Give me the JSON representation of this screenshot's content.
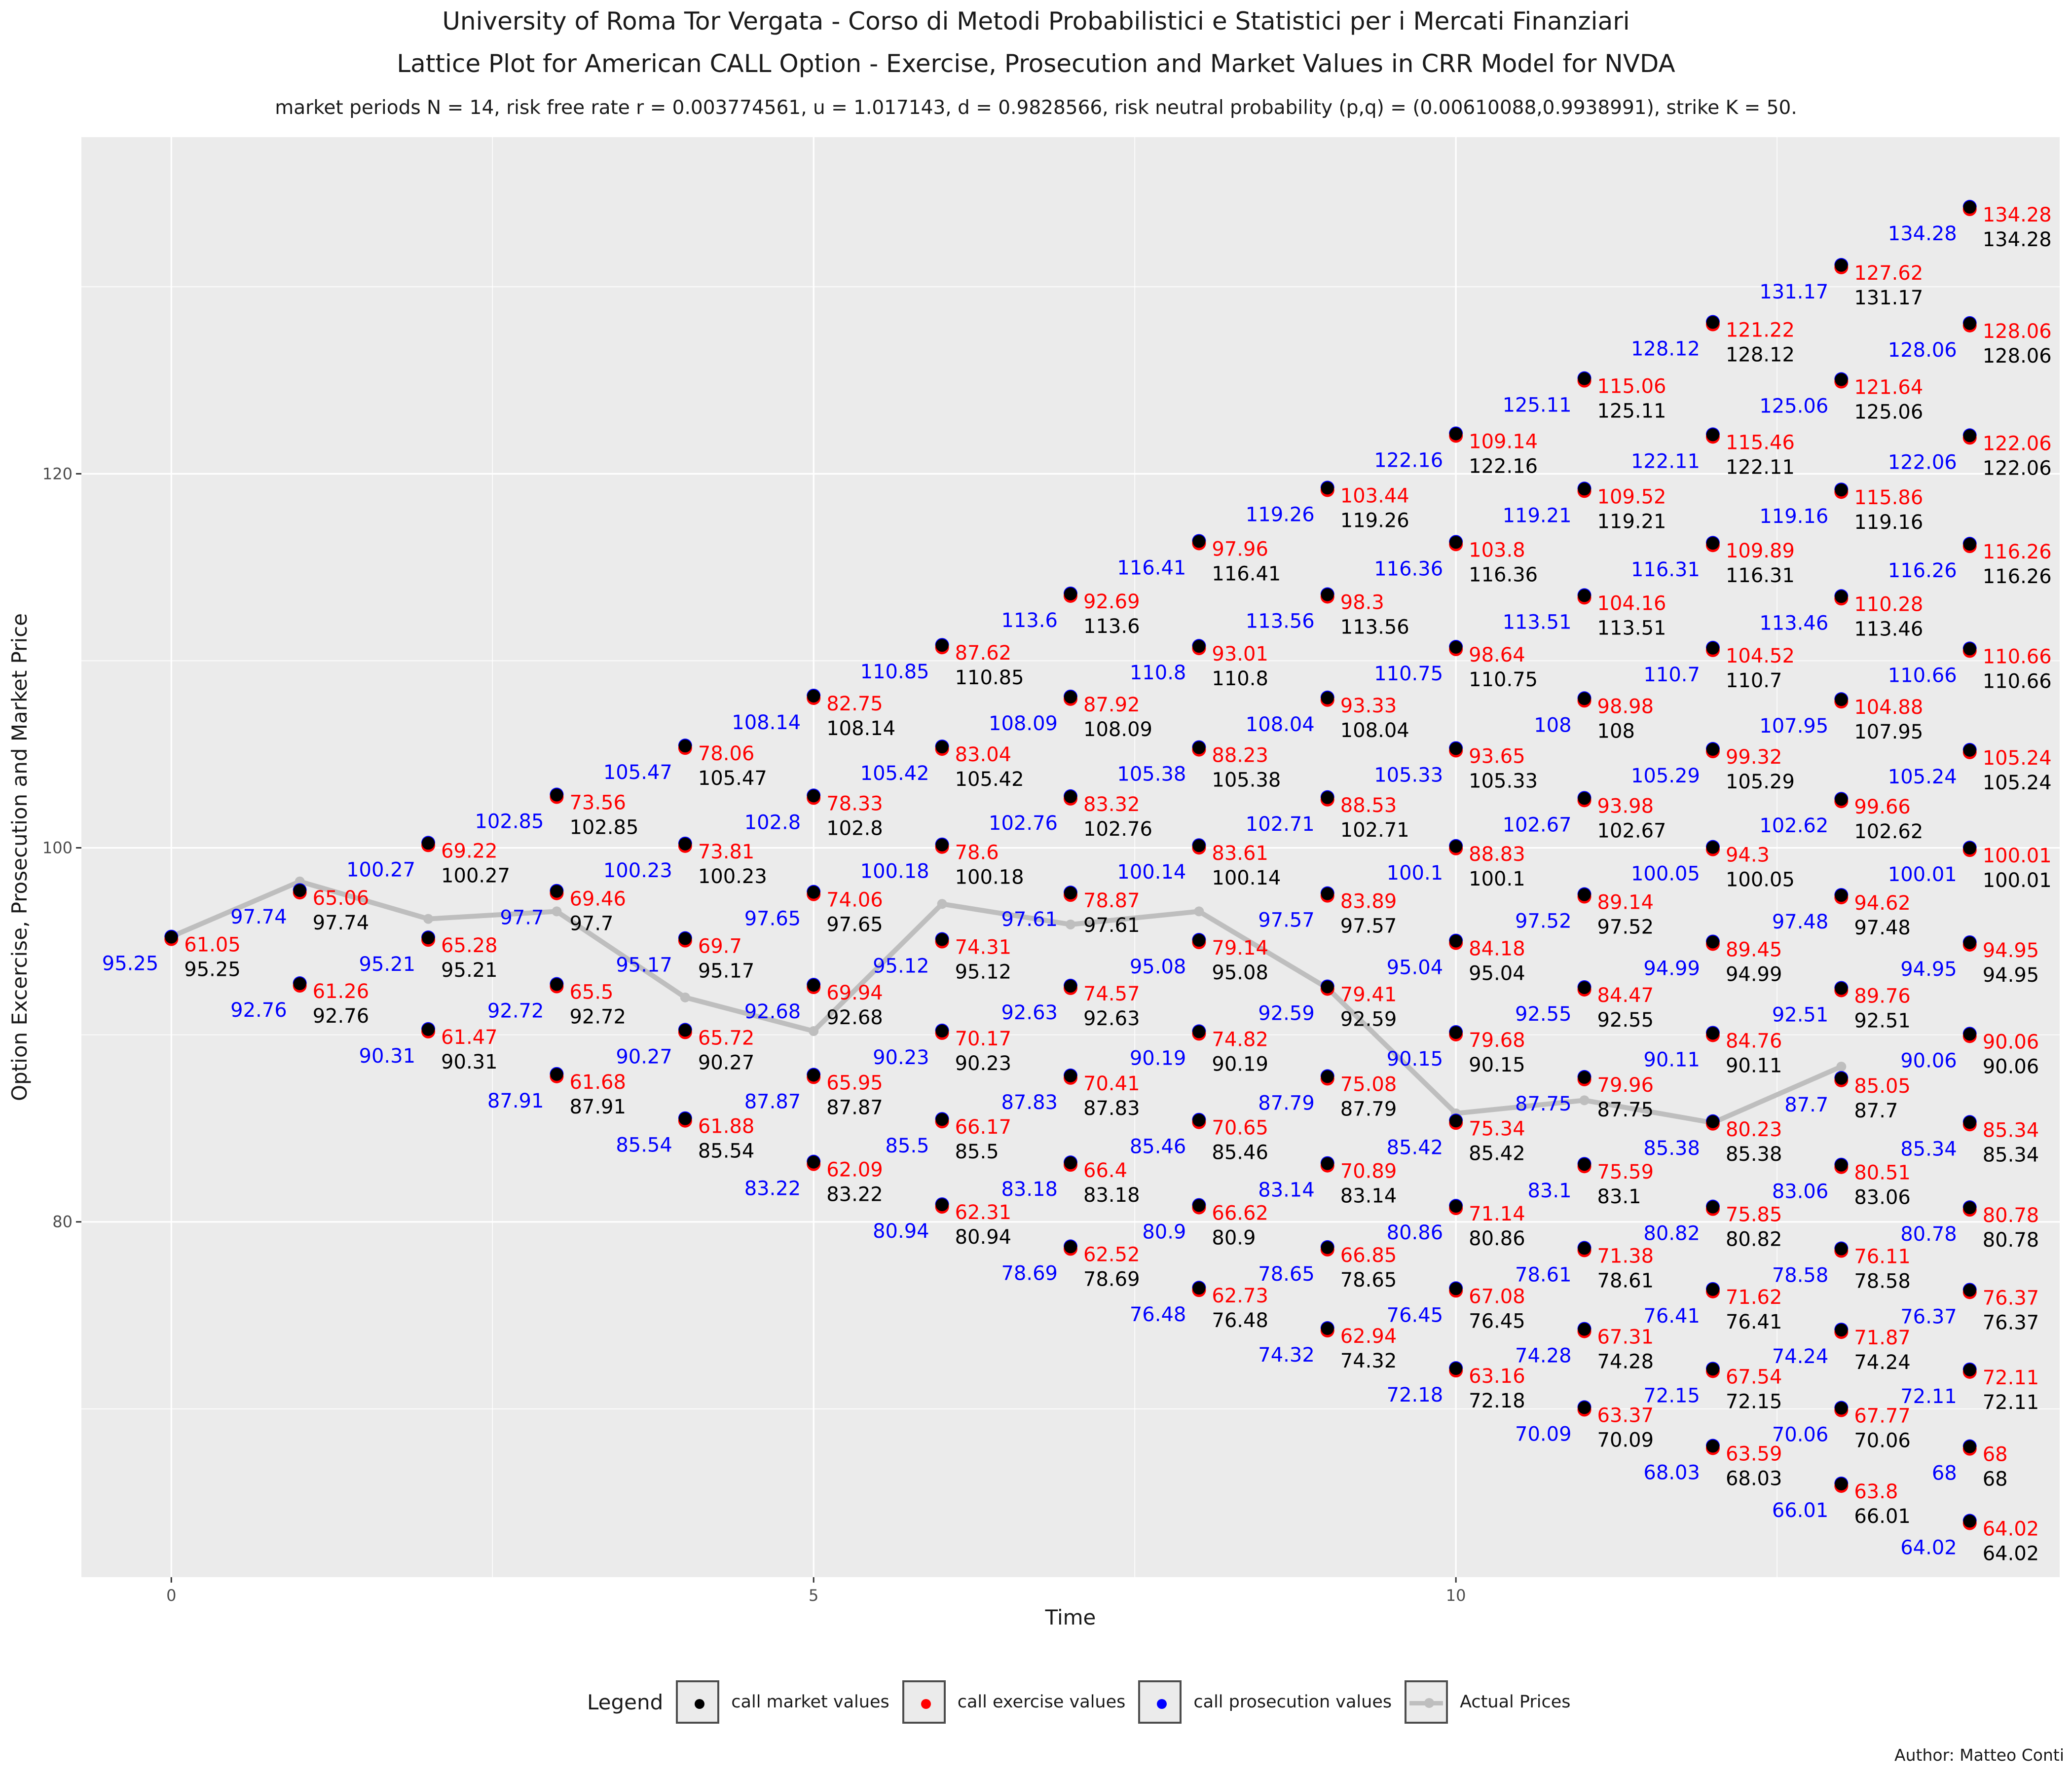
{
  "titles": {
    "line1": "University of Roma Tor Vergata - Corso di Metodi Probabilistici e Statistici per i Mercati Finanziari",
    "line2": "Lattice Plot for American CALL Option - Exercise, Prosecution and Market Values in CRR Model for  NVDA",
    "line3": "market periods N = 14, risk free rate r = 0.003774561, u = 1.017143, d = 0.9828566, risk neutral probability (p,q) = (0.00610088,0.9938991), strike K = 50."
  },
  "author": "Author: Matteo Conti",
  "legend": {
    "title": "Legend",
    "items": [
      {
        "label": "call market values",
        "color": "#000000",
        "kind": "point"
      },
      {
        "label": "call exercise values",
        "color": "#ff0000",
        "kind": "point"
      },
      {
        "label": "call prosecution values",
        "color": "#0000ff",
        "kind": "point"
      },
      {
        "label": "Actual Prices",
        "color": "#bebebe",
        "kind": "line"
      }
    ]
  },
  "chart_data": {
    "type": "scatter",
    "title": "Lattice Plot for American CALL Option - Exercise, Prosecution and Market Values in CRR Model for  NVDA",
    "xlabel": "Time",
    "ylabel": "Option Excercise, Prosecution and Market Price",
    "xlim": [
      -0.7,
      14.7
    ],
    "ylim": [
      61.0,
      138.0
    ],
    "x_ticks": [
      0,
      5,
      10
    ],
    "y_ticks": [
      80,
      100,
      120
    ],
    "grid": true,
    "legend_position": "bottom",
    "colors": {
      "market": "#000000",
      "exercise": "#ff0000",
      "prosecution": "#0000ff",
      "actual": "#bebebe"
    },
    "lattice": [
      {
        "t": 0,
        "y": [
          95.25
        ],
        "exercise": [
          "61.05"
        ],
        "prosecution": [
          "95.25"
        ],
        "market": [
          "95.25"
        ]
      },
      {
        "t": 1,
        "y": [
          97.74,
          92.76
        ],
        "exercise": [
          "65.06",
          "61.26"
        ],
        "prosecution": [
          "97.74",
          "92.76"
        ],
        "market": [
          "97.74",
          "92.76"
        ]
      },
      {
        "t": 2,
        "y": [
          100.27,
          95.21,
          90.31
        ],
        "exercise": [
          "69.22",
          "65.28",
          "61.47"
        ],
        "prosecution": [
          "100.27",
          "95.21",
          "90.31"
        ],
        "market": [
          "100.27",
          "95.21",
          "90.31"
        ]
      },
      {
        "t": 3,
        "y": [
          102.85,
          97.7,
          92.72,
          87.91
        ],
        "exercise": [
          "73.56",
          "69.46",
          "65.5",
          "61.68"
        ],
        "prosecution": [
          "102.85",
          "97.7",
          "92.72",
          "87.91"
        ],
        "market": [
          "102.85",
          "97.7",
          "92.72",
          "87.91"
        ]
      },
      {
        "t": 4,
        "y": [
          105.47,
          100.23,
          95.17,
          90.27,
          85.54
        ],
        "exercise": [
          "78.06",
          "73.81",
          "69.7",
          "65.72",
          "61.88"
        ],
        "prosecution": [
          "105.47",
          "100.23",
          "95.17",
          "90.27",
          "85.54"
        ],
        "market": [
          "105.47",
          "100.23",
          "95.17",
          "90.27",
          "85.54"
        ]
      },
      {
        "t": 5,
        "y": [
          108.14,
          102.8,
          97.65,
          92.68,
          87.87,
          83.22
        ],
        "exercise": [
          "82.75",
          "78.33",
          "74.06",
          "69.94",
          "65.95",
          "62.09"
        ],
        "prosecution": [
          "108.14",
          "102.8",
          "97.65",
          "92.68",
          "87.87",
          "83.22"
        ],
        "market": [
          "108.14",
          "102.8",
          "97.65",
          "92.68",
          "87.87",
          "83.22"
        ]
      },
      {
        "t": 6,
        "y": [
          110.85,
          105.42,
          100.18,
          95.12,
          90.23,
          85.5,
          80.94
        ],
        "exercise": [
          "87.62",
          "83.04",
          "78.6",
          "74.31",
          "70.17",
          "66.17",
          "62.31"
        ],
        "prosecution": [
          "110.85",
          "105.42",
          "100.18",
          "95.12",
          "90.23",
          "85.5",
          "80.94"
        ],
        "market": [
          "110.85",
          "105.42",
          "100.18",
          "95.12",
          "90.23",
          "85.5",
          "80.94"
        ]
      },
      {
        "t": 7,
        "y": [
          113.6,
          108.09,
          102.76,
          97.61,
          92.63,
          87.83,
          83.18,
          78.69
        ],
        "exercise": [
          "92.69",
          "87.92",
          "83.32",
          "78.87",
          "74.57",
          "70.41",
          "66.4",
          "62.52"
        ],
        "prosecution": [
          "113.6",
          "108.09",
          "102.76",
          "97.61",
          "92.63",
          "87.83",
          "83.18",
          "78.69"
        ],
        "market": [
          "113.6",
          "108.09",
          "102.76",
          "97.61",
          "92.63",
          "87.83",
          "83.18",
          "78.69"
        ]
      },
      {
        "t": 8,
        "y": [
          116.41,
          110.8,
          105.38,
          100.14,
          95.08,
          90.19,
          85.46,
          80.9,
          76.48
        ],
        "exercise": [
          "97.96",
          "93.01",
          "88.23",
          "83.61",
          "79.14",
          "74.82",
          "70.65",
          "66.62",
          "62.73"
        ],
        "prosecution": [
          "116.41",
          "110.8",
          "105.38",
          "100.14",
          "95.08",
          "90.19",
          "85.46",
          "80.9",
          "76.48"
        ],
        "market": [
          "116.41",
          "110.8",
          "105.38",
          "100.14",
          "95.08",
          "90.19",
          "85.46",
          "80.9",
          "76.48"
        ]
      },
      {
        "t": 9,
        "y": [
          119.26,
          113.56,
          108.04,
          102.71,
          97.57,
          92.59,
          87.79,
          83.14,
          78.65,
          74.32
        ],
        "exercise": [
          "103.44",
          "98.3",
          "93.33",
          "88.53",
          "83.89",
          "79.41",
          "75.08",
          "70.89",
          "66.85",
          "62.94"
        ],
        "prosecution": [
          "119.26",
          "113.56",
          "108.04",
          "102.71",
          "97.57",
          "92.59",
          "87.79",
          "83.14",
          "78.65",
          "74.32"
        ],
        "market": [
          "119.26",
          "113.56",
          "108.04",
          "102.71",
          "97.57",
          "92.59",
          "87.79",
          "83.14",
          "78.65",
          "74.32"
        ]
      },
      {
        "t": 10,
        "y": [
          122.16,
          116.36,
          110.75,
          105.33,
          100.1,
          95.04,
          90.15,
          85.42,
          80.86,
          76.45,
          72.18
        ],
        "exercise": [
          "109.14",
          "103.8",
          "98.64",
          "93.65",
          "88.83",
          "84.18",
          "79.68",
          "75.34",
          "71.14",
          "67.08",
          "63.16"
        ],
        "prosecution": [
          "122.16",
          "116.36",
          "110.75",
          "105.33",
          "100.1",
          "95.04",
          "90.15",
          "85.42",
          "80.86",
          "76.45",
          "72.18"
        ],
        "market": [
          "122.16",
          "116.36",
          "110.75",
          "105.33",
          "100.1",
          "95.04",
          "90.15",
          "85.42",
          "80.86",
          "76.45",
          "72.18"
        ]
      },
      {
        "t": 11,
        "y": [
          125.11,
          119.21,
          113.51,
          108,
          102.67,
          97.52,
          92.55,
          87.75,
          83.1,
          78.61,
          74.28,
          70.09
        ],
        "exercise": [
          "115.06",
          "109.52",
          "104.16",
          "98.98",
          "93.98",
          "89.14",
          "84.47",
          "79.96",
          "75.59",
          "71.38",
          "67.31",
          "63.37"
        ],
        "prosecution": [
          "125.11",
          "119.21",
          "113.51",
          "108",
          "102.67",
          "97.52",
          "92.55",
          "87.75",
          "83.1",
          "78.61",
          "74.28",
          "70.09"
        ],
        "market": [
          "125.11",
          "119.21",
          "113.51",
          "108",
          "102.67",
          "97.52",
          "92.55",
          "87.75",
          "83.1",
          "78.61",
          "74.28",
          "70.09"
        ]
      },
      {
        "t": 12,
        "y": [
          128.12,
          122.11,
          116.31,
          110.7,
          105.29,
          100.05,
          94.99,
          90.11,
          85.38,
          80.82,
          76.41,
          72.15,
          68.03
        ],
        "exercise": [
          "121.22",
          "115.46",
          "109.89",
          "104.52",
          "99.32",
          "94.3",
          "89.45",
          "84.76",
          "80.23",
          "75.85",
          "71.62",
          "67.54",
          "63.59"
        ],
        "prosecution": [
          "128.12",
          "122.11",
          "116.31",
          "110.7",
          "105.29",
          "100.05",
          "94.99",
          "90.11",
          "85.38",
          "80.82",
          "76.41",
          "72.15",
          "68.03"
        ],
        "market": [
          "128.12",
          "122.11",
          "116.31",
          "110.7",
          "105.29",
          "100.05",
          "94.99",
          "90.11",
          "85.38",
          "80.82",
          "76.41",
          "72.15",
          "68.03"
        ]
      },
      {
        "t": 13,
        "y": [
          131.17,
          125.06,
          119.16,
          113.46,
          107.95,
          102.62,
          97.48,
          92.51,
          87.7,
          83.06,
          78.58,
          74.24,
          70.06,
          66.01
        ],
        "exercise": [
          "127.62",
          "121.64",
          "115.86",
          "110.28",
          "104.88",
          "99.66",
          "94.62",
          "89.76",
          "85.05",
          "80.51",
          "76.11",
          "71.87",
          "67.77",
          "63.8"
        ],
        "prosecution": [
          "131.17",
          "125.06",
          "119.16",
          "113.46",
          "107.95",
          "102.62",
          "97.48",
          "92.51",
          "87.7",
          "83.06",
          "78.58",
          "74.24",
          "70.06",
          "66.01"
        ],
        "market": [
          "131.17",
          "125.06",
          "119.16",
          "113.46",
          "107.95",
          "102.62",
          "97.48",
          "92.51",
          "87.7",
          "83.06",
          "78.58",
          "74.24",
          "70.06",
          "66.01"
        ]
      },
      {
        "t": 14,
        "y": [
          134.28,
          128.06,
          122.06,
          116.26,
          110.66,
          105.24,
          100.01,
          94.95,
          90.06,
          85.34,
          80.78,
          76.37,
          72.11,
          68,
          64.02
        ],
        "exercise": [
          "134.28",
          "128.06",
          "122.06",
          "116.26",
          "110.66",
          "105.24",
          "100.01",
          "94.95",
          "90.06",
          "85.34",
          "80.78",
          "76.37",
          "72.11",
          "68",
          "64.02"
        ],
        "prosecution": [
          "134.28",
          "128.06",
          "122.06",
          "116.26",
          "110.66",
          "105.24",
          "100.01",
          "94.95",
          "90.06",
          "85.34",
          "80.78",
          "76.37",
          "72.11",
          "68",
          "64.02"
        ],
        "market": [
          "134.28",
          "128.06",
          "122.06",
          "116.26",
          "110.66",
          "105.24",
          "100.01",
          "94.95",
          "90.06",
          "85.34",
          "80.78",
          "76.37",
          "72.11",
          "68",
          "64.02"
        ]
      }
    ],
    "actual_prices": {
      "x": [
        0,
        1,
        2,
        3,
        4,
        5,
        6,
        7,
        8,
        9,
        10,
        11,
        12,
        13
      ],
      "y": [
        95.25,
        98.2,
        96.2,
        96.6,
        92.0,
        90.2,
        97.0,
        95.9,
        96.6,
        92.5,
        85.8,
        86.5,
        85.3,
        88.3
      ]
    }
  }
}
